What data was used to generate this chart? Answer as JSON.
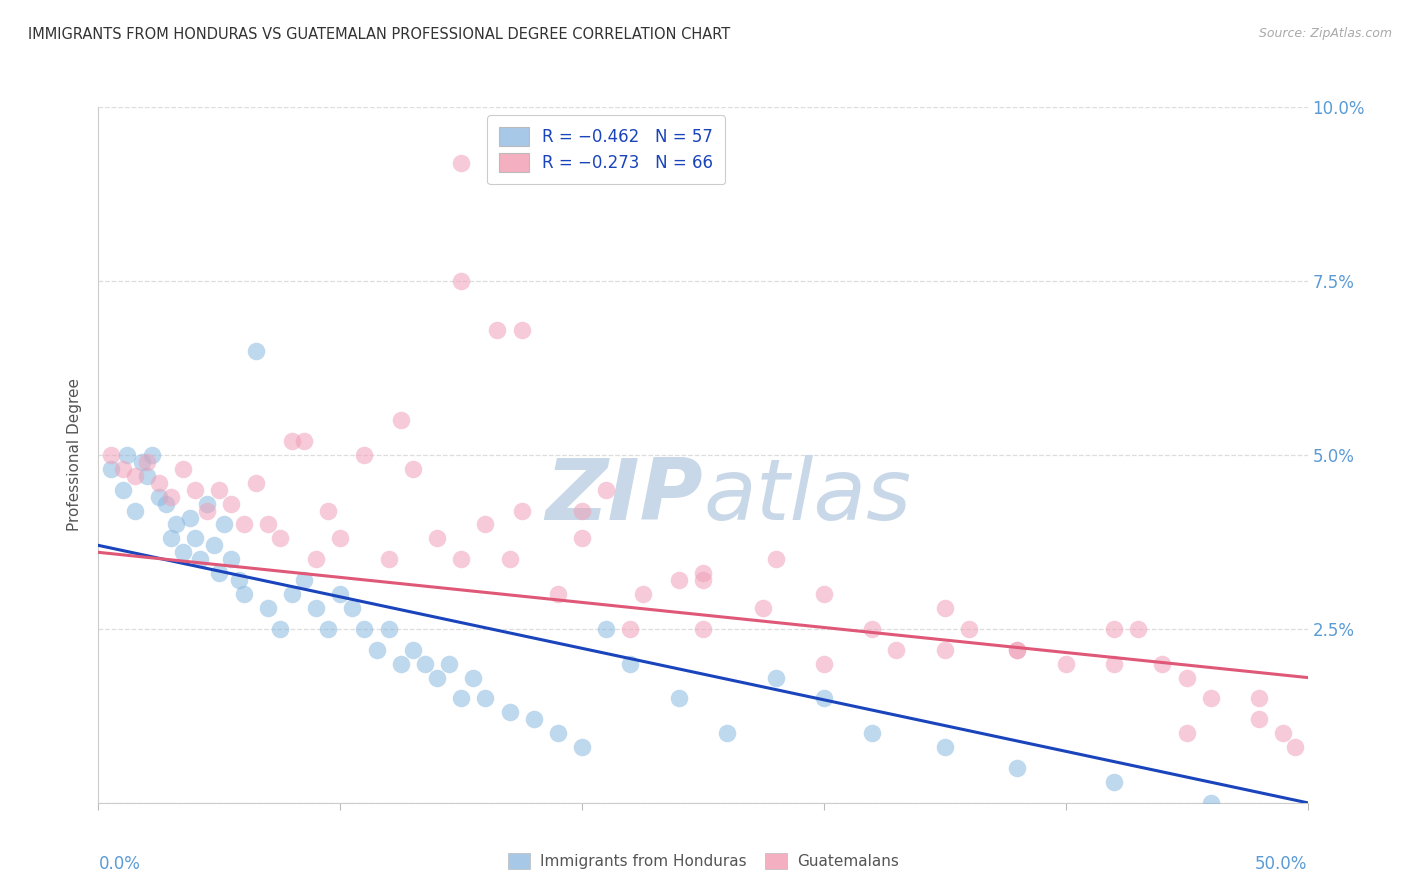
{
  "title": "IMMIGRANTS FROM HONDURAS VS GUATEMALAN PROFESSIONAL DEGREE CORRELATION CHART",
  "source": "Source: ZipAtlas.com",
  "ylabel": "Professional Degree",
  "legend_blue_label": "R = −0.462   N = 57",
  "legend_pink_label": "R = −0.273   N = 66",
  "legend_blue_color": "#a8c8e8",
  "legend_pink_color": "#f4b0c0",
  "scatter_blue_color": "#8ab8e0",
  "scatter_pink_color": "#f0a0b8",
  "line_blue_color": "#1a44bb",
  "line_pink_color": "#e05878",
  "watermark_zip_color": "#c8d8e8",
  "watermark_atlas_color": "#c8d8e8",
  "background_color": "#ffffff",
  "title_color": "#333333",
  "axis_label_color": "#5b9bd5",
  "source_color": "#aaaaaa",
  "grid_color": "#dddddd",
  "Honduras_x": [
    0.5,
    1.0,
    1.2,
    1.5,
    1.8,
    2.0,
    2.2,
    2.5,
    2.8,
    3.0,
    3.2,
    3.5,
    3.8,
    4.0,
    4.2,
    4.5,
    4.8,
    5.0,
    5.2,
    5.5,
    5.8,
    6.0,
    6.5,
    7.0,
    7.5,
    8.0,
    8.5,
    9.0,
    9.5,
    10.0,
    10.5,
    11.0,
    11.5,
    12.0,
    12.5,
    13.0,
    13.5,
    14.0,
    14.5,
    15.0,
    15.5,
    16.0,
    17.0,
    18.0,
    19.0,
    20.0,
    21.0,
    22.0,
    24.0,
    26.0,
    28.0,
    30.0,
    32.0,
    35.0,
    38.0,
    42.0,
    46.0
  ],
  "Honduras_y": [
    4.8,
    4.5,
    5.0,
    4.2,
    4.9,
    4.7,
    5.0,
    4.4,
    4.3,
    3.8,
    4.0,
    3.6,
    4.1,
    3.8,
    3.5,
    4.3,
    3.7,
    3.3,
    4.0,
    3.5,
    3.2,
    3.0,
    6.5,
    2.8,
    2.5,
    3.0,
    3.2,
    2.8,
    2.5,
    3.0,
    2.8,
    2.5,
    2.2,
    2.5,
    2.0,
    2.2,
    2.0,
    1.8,
    2.0,
    1.5,
    1.8,
    1.5,
    1.3,
    1.2,
    1.0,
    0.8,
    2.5,
    2.0,
    1.5,
    1.0,
    1.8,
    1.5,
    1.0,
    0.8,
    0.5,
    0.3,
    0.0
  ],
  "Guatemalan_x": [
    0.5,
    1.0,
    1.5,
    2.0,
    2.5,
    3.0,
    3.5,
    4.0,
    4.5,
    5.0,
    5.5,
    6.0,
    6.5,
    7.0,
    7.5,
    8.0,
    8.5,
    9.0,
    9.5,
    10.0,
    11.0,
    12.0,
    12.5,
    13.0,
    14.0,
    15.0,
    16.0,
    17.0,
    17.5,
    19.0,
    20.0,
    21.0,
    22.5,
    24.0,
    25.0,
    27.5,
    15.0,
    16.5,
    17.5,
    20.0,
    22.0,
    25.0,
    15.0,
    28.0,
    30.0,
    32.0,
    33.0,
    35.0,
    36.0,
    38.0,
    40.0,
    42.0,
    44.0,
    45.0,
    46.0,
    48.0,
    49.0,
    49.5,
    35.0,
    30.0,
    25.0,
    45.0,
    38.0,
    42.0,
    48.0,
    43.0
  ],
  "Guatemalan_y": [
    5.0,
    4.8,
    4.7,
    4.9,
    4.6,
    4.4,
    4.8,
    4.5,
    4.2,
    4.5,
    4.3,
    4.0,
    4.6,
    4.0,
    3.8,
    5.2,
    5.2,
    3.5,
    4.2,
    3.8,
    5.0,
    3.5,
    5.5,
    4.8,
    3.8,
    3.5,
    4.0,
    3.5,
    4.2,
    3.0,
    3.8,
    4.5,
    3.0,
    3.2,
    3.3,
    2.8,
    7.5,
    6.8,
    6.8,
    4.2,
    2.5,
    3.2,
    9.2,
    3.5,
    3.0,
    2.5,
    2.2,
    2.8,
    2.5,
    2.2,
    2.0,
    2.5,
    2.0,
    1.8,
    1.5,
    1.2,
    1.0,
    0.8,
    2.2,
    2.0,
    2.5,
    1.0,
    2.2,
    2.0,
    1.5,
    2.5
  ],
  "blue_line_x": [
    0.0,
    50.0
  ],
  "blue_line_y": [
    3.7,
    0.0
  ],
  "pink_line_x": [
    0.0,
    50.0
  ],
  "pink_line_y": [
    3.6,
    1.8
  ],
  "xlim": [
    0.0,
    50.0
  ],
  "ylim": [
    0.0,
    10.0
  ],
  "yticks": [
    0.0,
    2.5,
    5.0,
    7.5,
    10.0
  ],
  "ytick_labels": [
    "",
    "2.5%",
    "5.0%",
    "7.5%",
    "10.0%"
  ],
  "xtick_positions": [
    0.0,
    10.0,
    20.0,
    30.0,
    40.0,
    50.0
  ]
}
